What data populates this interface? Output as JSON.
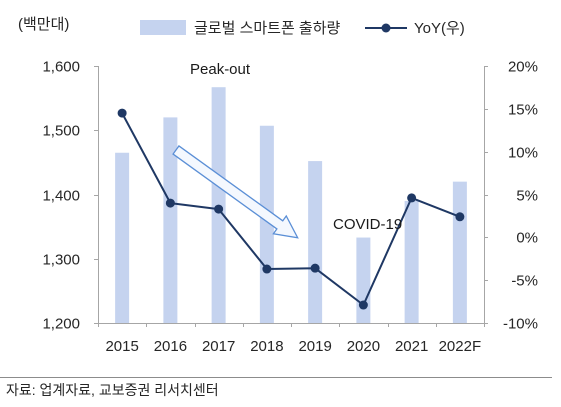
{
  "source": "자료: 업계자료, 교보증권 리서치센터",
  "chart_data": {
    "type": "bar",
    "categories": [
      "2015",
      "2016",
      "2017",
      "2018",
      "2019",
      "2020",
      "2021",
      "2022F"
    ],
    "series": [
      {
        "name": "글로벌 스마트폰 출하량",
        "type": "bar",
        "axis": "left",
        "color": "#c5d3ef",
        "values": [
          1465,
          1520,
          1567,
          1507,
          1452,
          1333,
          1390,
          1420
        ]
      },
      {
        "name": "YoY(우)",
        "type": "line",
        "axis": "right",
        "color": "#1f3864",
        "values": [
          14.5,
          4.0,
          3.3,
          -3.7,
          -3.6,
          -7.9,
          4.6,
          2.4
        ]
      }
    ],
    "ylabel": "(백만대)",
    "ylim": [
      1200,
      1600
    ],
    "y_ticks": [
      {
        "value": 1600,
        "label": "1,600"
      },
      {
        "value": 1500,
        "label": "1,500"
      },
      {
        "value": 1400,
        "label": "1,400"
      },
      {
        "value": 1300,
        "label": "1,300"
      },
      {
        "value": 1200,
        "label": "1,200"
      }
    ],
    "y2lim": [
      -10,
      20
    ],
    "y2_ticks": [
      {
        "value": 20,
        "label": "20%"
      },
      {
        "value": 15,
        "label": "15%"
      },
      {
        "value": 10,
        "label": "10%"
      },
      {
        "value": 5,
        "label": "5%"
      },
      {
        "value": 0,
        "label": "0%"
      },
      {
        "value": -5,
        "label": "-5%"
      },
      {
        "value": -10,
        "label": "-10%"
      }
    ],
    "annotations": [
      "Peak-out",
      "COVID-19"
    ],
    "legend": "top",
    "grid": false
  }
}
